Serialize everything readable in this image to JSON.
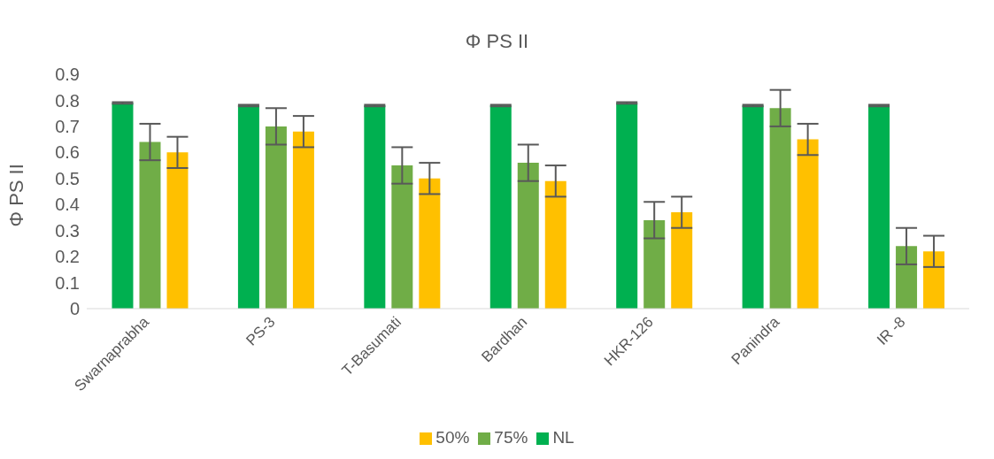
{
  "chart_data": {
    "type": "bar",
    "title": "Φ PS II",
    "ylabel": "Φ PS II",
    "categories": [
      "Swarnaprabha",
      "PS-3",
      "T-Basumati",
      "Bardhan",
      "HKR-126",
      "Panindra",
      "IR -8"
    ],
    "series": [
      {
        "name": "NL",
        "color": "#00b050",
        "values": [
          0.79,
          0.78,
          0.78,
          0.78,
          0.79,
          0.78,
          0.78
        ],
        "errors": [
          0.003,
          0.003,
          0.003,
          0.003,
          0.003,
          0.003,
          0.003
        ]
      },
      {
        "name": "75%",
        "color": "#70ad47",
        "values": [
          0.64,
          0.7,
          0.55,
          0.56,
          0.34,
          0.77,
          0.24
        ],
        "errors": [
          0.07,
          0.07,
          0.07,
          0.07,
          0.07,
          0.07,
          0.07
        ]
      },
      {
        "name": "50%",
        "color": "#ffc000",
        "values": [
          0.6,
          0.68,
          0.5,
          0.49,
          0.37,
          0.65,
          0.22
        ],
        "errors": [
          0.06,
          0.06,
          0.06,
          0.06,
          0.06,
          0.06,
          0.06
        ]
      }
    ],
    "ylim": [
      0,
      0.9
    ],
    "yticks": [
      0,
      0.1,
      0.2,
      0.3,
      0.4,
      0.5,
      0.6,
      0.7,
      0.8,
      0.9
    ],
    "grid": false,
    "legend": "bottom"
  }
}
